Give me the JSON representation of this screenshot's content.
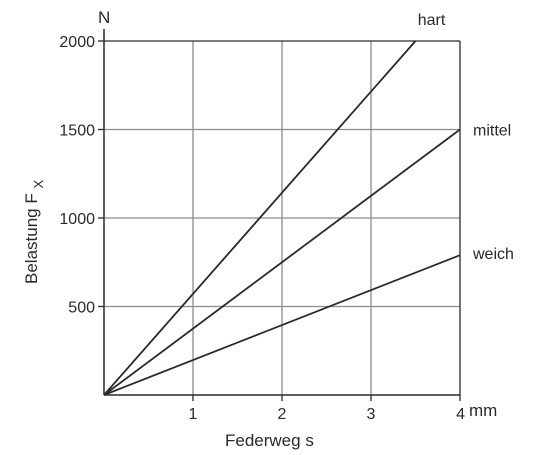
{
  "chart_data": {
    "type": "line",
    "xlabel": "Federweg s",
    "x_unit": "mm",
    "ylabel_main": "Belastung F",
    "ylabel_sub": "X",
    "y_unit": "N",
    "xlim": [
      0,
      4
    ],
    "ylim": [
      0,
      2000
    ],
    "x_ticks": [
      "1",
      "2",
      "3",
      "4"
    ],
    "y_ticks": [
      "500",
      "1000",
      "1500",
      "2000"
    ],
    "grid": true,
    "series": [
      {
        "name": "hart",
        "x": [
          0,
          3.5
        ],
        "y": [
          0,
          2000
        ]
      },
      {
        "name": "mittel",
        "x": [
          0,
          4
        ],
        "y": [
          0,
          1500
        ]
      },
      {
        "name": "weich",
        "x": [
          0,
          4
        ],
        "y": [
          0,
          790
        ]
      }
    ],
    "colors": {
      "grid": "#8c8c8c",
      "axis": "#2a2a2a",
      "line": "#2a2a2a"
    }
  }
}
